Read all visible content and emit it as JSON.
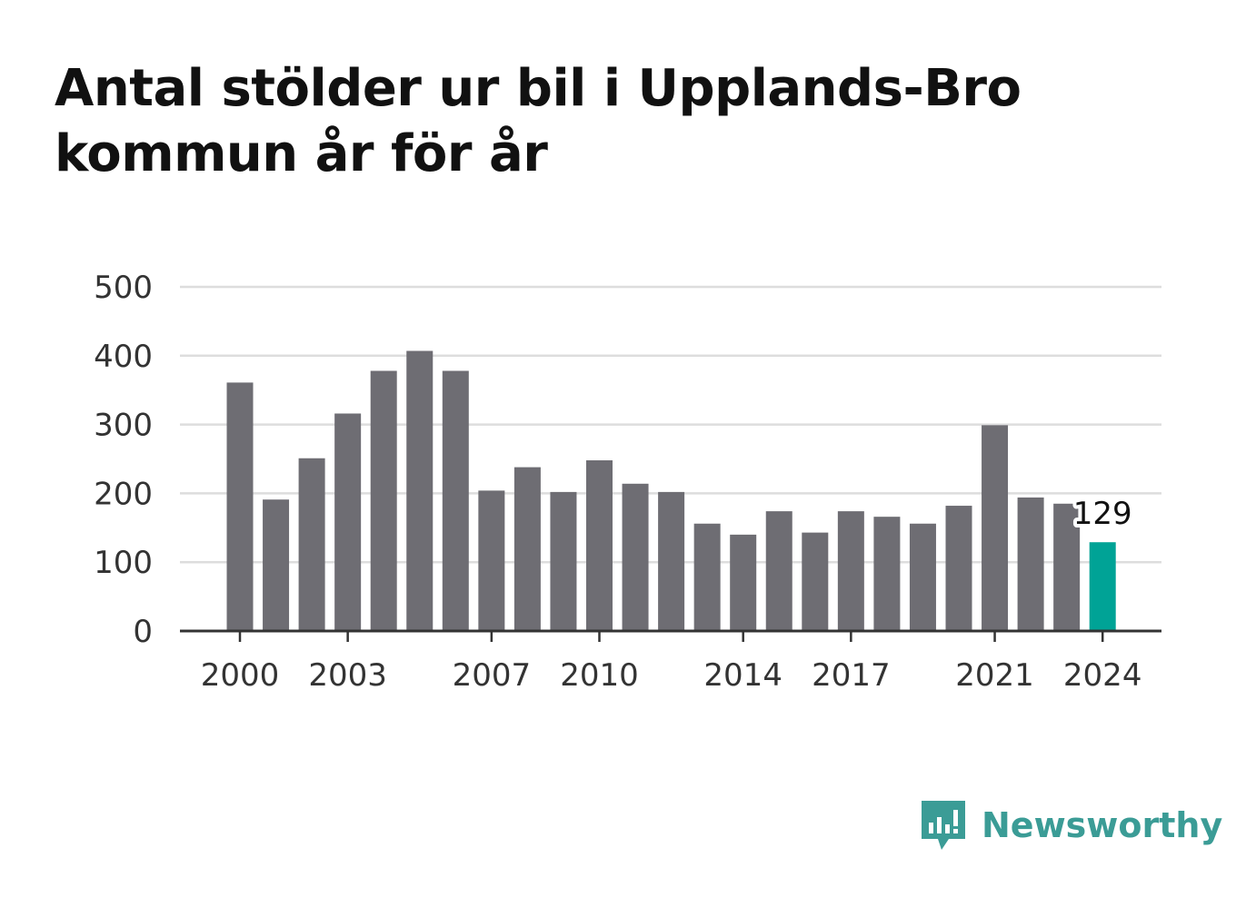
{
  "colors": {
    "bar": "#6e6d73",
    "highlight": "#00a396",
    "grid": "#dddddd",
    "axis": "#333333",
    "brand": "#3b9c96"
  },
  "brand": {
    "name": "Newsworthy",
    "icon": "newsworthy-logo-icon"
  },
  "chart_data": {
    "type": "bar",
    "title": "Antal stölder ur bil i Upplands-Bro kommun år för år",
    "xlabel": "",
    "ylabel": "",
    "ylim": [
      0,
      500
    ],
    "yticks": [
      0,
      100,
      200,
      300,
      400,
      500
    ],
    "xticks": [
      2000,
      2003,
      2007,
      2010,
      2014,
      2017,
      2021,
      2024
    ],
    "grid": true,
    "categories": [
      2000,
      2001,
      2002,
      2003,
      2004,
      2005,
      2006,
      2007,
      2008,
      2009,
      2010,
      2011,
      2012,
      2013,
      2014,
      2015,
      2016,
      2017,
      2018,
      2019,
      2020,
      2021,
      2022,
      2023,
      2024
    ],
    "values": [
      361,
      191,
      251,
      316,
      378,
      407,
      378,
      204,
      238,
      202,
      248,
      214,
      202,
      156,
      140,
      174,
      143,
      174,
      166,
      156,
      182,
      299,
      194,
      185,
      129
    ],
    "highlight": {
      "category": 2024,
      "label": "129"
    }
  }
}
